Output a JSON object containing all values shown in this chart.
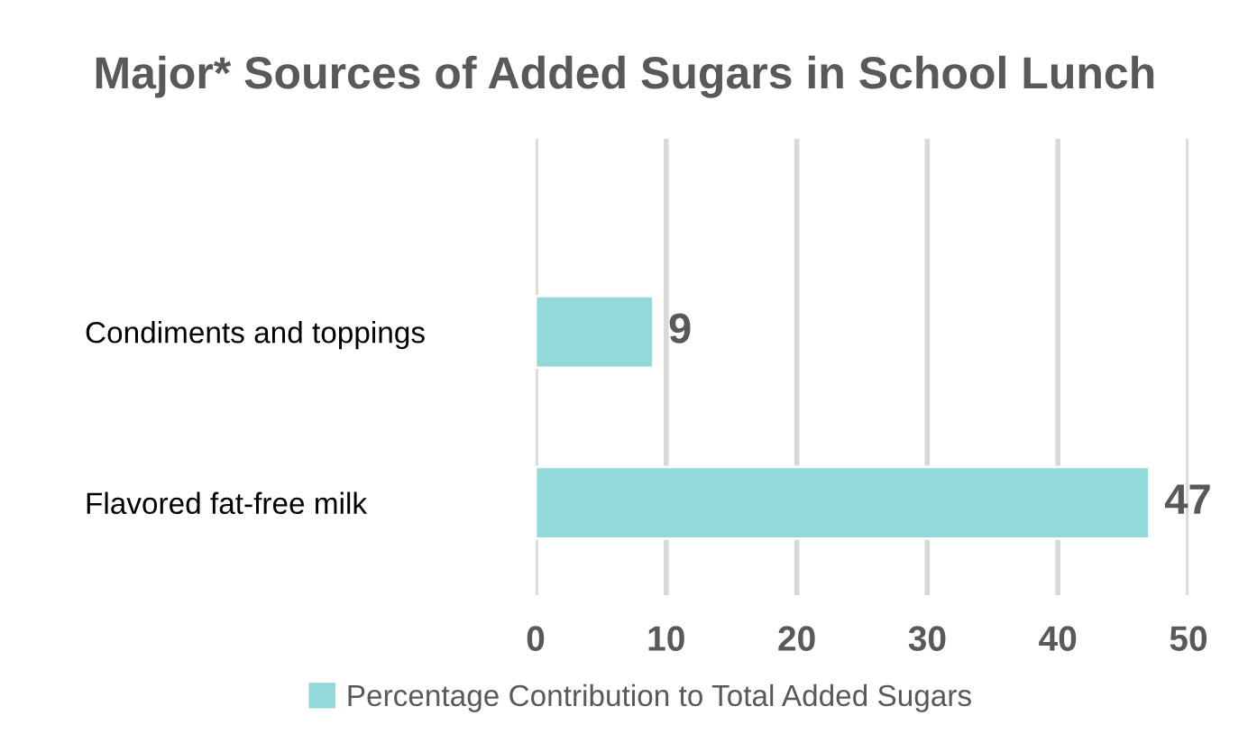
{
  "chart_data": {
    "type": "bar",
    "orientation": "horizontal",
    "title": "Major* Sources of Added Sugars in School Lunch",
    "categories": [
      "Condiments and toppings",
      "Flavored fat-free milk"
    ],
    "series": [
      {
        "name": "Percentage Contribution to Total Added Sugars",
        "color": "#93d9d9",
        "values": [
          9,
          47
        ]
      }
    ],
    "xlim": [
      0,
      50
    ],
    "xticks": [
      0,
      10,
      20,
      30,
      40,
      50
    ],
    "grid": "x",
    "data_labels": true,
    "legend": "bottom"
  }
}
